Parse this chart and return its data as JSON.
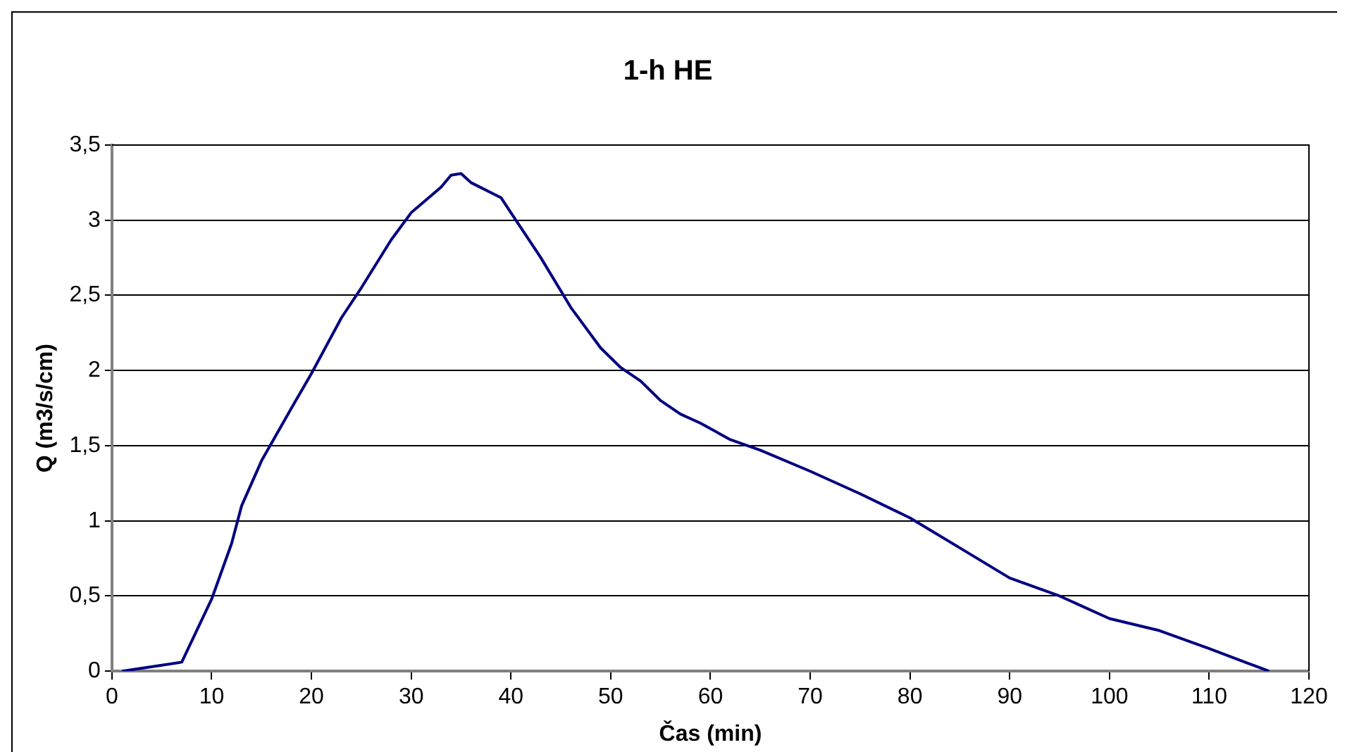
{
  "chart_data": {
    "type": "line",
    "title": "1-h HE",
    "xlabel": "Čas (min)",
    "ylabel": "Q (m3/s/cm)",
    "xlim": [
      0,
      120
    ],
    "xticks": [
      0,
      10,
      20,
      30,
      40,
      50,
      60,
      70,
      80,
      90,
      100,
      110,
      120
    ],
    "ylim": [
      0,
      3.5
    ],
    "yticks": [
      {
        "value": 0,
        "label": "0"
      },
      {
        "value": 0.5,
        "label": "0,5"
      },
      {
        "value": 1,
        "label": "1"
      },
      {
        "value": 1.5,
        "label": "1,5"
      },
      {
        "value": 2,
        "label": "2"
      },
      {
        "value": 2.5,
        "label": "2,5"
      },
      {
        "value": 3,
        "label": "3"
      },
      {
        "value": 3.5,
        "label": "3,5"
      }
    ],
    "grid": "y",
    "legend": false,
    "marker": "none",
    "line_style": "solid",
    "series": [
      {
        "color": "#000080",
        "x": [
          1,
          3,
          5,
          7,
          10,
          12,
          13,
          15,
          18,
          20,
          23,
          25,
          28,
          30,
          33,
          34,
          35,
          36,
          39,
          40,
          43,
          46,
          49,
          51,
          53,
          55,
          57,
          59,
          62,
          65,
          70,
          75,
          80,
          85,
          90,
          95,
          100,
          105,
          110,
          114,
          116
        ],
        "values": [
          0,
          0.02,
          0.04,
          0.06,
          0.48,
          0.85,
          1.1,
          1.4,
          1.75,
          1.98,
          2.35,
          2.55,
          2.87,
          3.05,
          3.22,
          3.3,
          3.31,
          3.25,
          3.15,
          3.05,
          2.75,
          2.42,
          2.15,
          2.02,
          1.93,
          1.8,
          1.71,
          1.65,
          1.54,
          1.47,
          1.33,
          1.18,
          1.02,
          0.82,
          0.62,
          0.5,
          0.35,
          0.27,
          0.15,
          0.05,
          0
        ]
      }
    ]
  }
}
